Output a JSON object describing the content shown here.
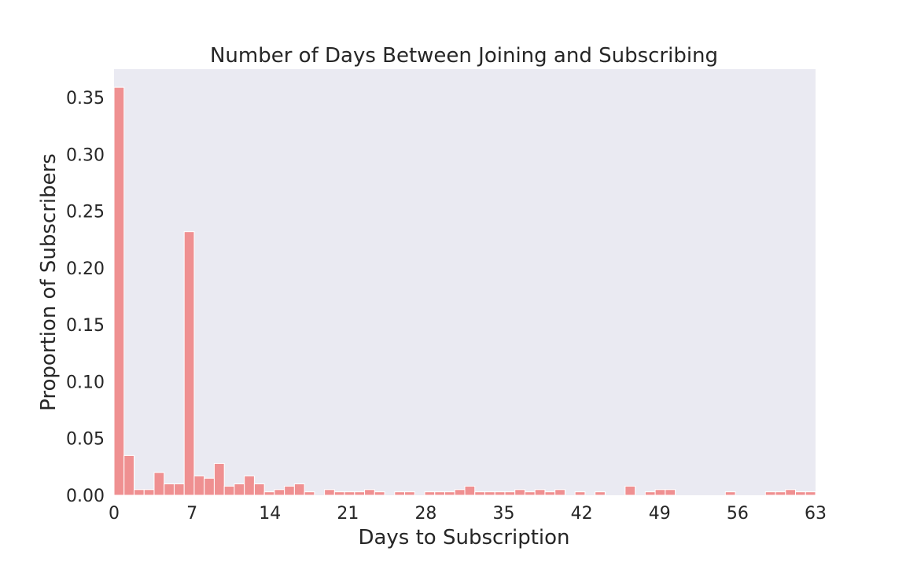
{
  "chart_data": {
    "type": "bar",
    "title": "Number of Days Between Joining and Subscribing",
    "xlabel": "Days to Subscription",
    "ylabel": "Proportion of Subscribers",
    "xlim": [
      0,
      63
    ],
    "ylim": [
      0,
      0.375
    ],
    "x_ticks": [
      "0",
      "7",
      "14",
      "21",
      "28",
      "35",
      "42",
      "49",
      "56",
      "63"
    ],
    "y_ticks": [
      "0.00",
      "0.05",
      "0.10",
      "0.15",
      "0.20",
      "0.25",
      "0.30",
      "0.35"
    ],
    "bin_width": 0.9,
    "bin_starts": [
      0,
      0.9,
      1.8,
      2.7,
      3.6,
      4.5,
      5.4,
      6.3,
      7.2,
      8.1,
      9.0,
      9.9,
      10.8,
      11.7,
      12.6,
      13.5,
      14.4,
      15.3,
      16.2,
      17.1,
      18.0,
      18.9,
      19.8,
      20.7,
      21.6,
      22.5,
      23.4,
      24.3,
      25.2,
      26.1,
      27.0,
      27.9,
      28.8,
      29.7,
      30.6,
      31.5,
      32.4,
      33.3,
      34.2,
      35.1,
      36.0,
      36.9,
      37.8,
      38.7,
      39.6,
      40.5,
      41.4,
      42.3,
      43.2,
      44.1,
      45.0,
      45.9,
      46.8,
      47.7,
      48.6,
      49.5,
      50.4,
      51.3,
      52.2,
      53.1,
      54.0,
      54.9,
      55.8,
      56.7,
      57.6,
      58.5,
      59.4,
      60.3,
      61.2,
      62.1
    ],
    "values": [
      0.359,
      0.035,
      0.005,
      0.005,
      0.02,
      0.01,
      0.01,
      0.232,
      0.017,
      0.015,
      0.028,
      0.008,
      0.01,
      0.017,
      0.01,
      0.003,
      0.005,
      0.008,
      0.01,
      0.003,
      0,
      0.005,
      0.003,
      0.003,
      0.003,
      0.005,
      0.003,
      0,
      0.003,
      0.003,
      0,
      0.003,
      0.003,
      0.003,
      0.005,
      0.008,
      0.003,
      0.003,
      0.003,
      0.003,
      0.005,
      0.003,
      0.005,
      0.003,
      0.005,
      0,
      0.003,
      0,
      0.003,
      0,
      0,
      0.008,
      0,
      0.003,
      0.005,
      0.005,
      0,
      0,
      0,
      0,
      0,
      0.003,
      0,
      0,
      0,
      0.003,
      0.003,
      0.005,
      0.003,
      0.003
    ],
    "bar_color": "#f08080",
    "bar_edge_color": "#ffffff",
    "background_color": "#eaeaf2",
    "grid": false,
    "legend": "none"
  }
}
